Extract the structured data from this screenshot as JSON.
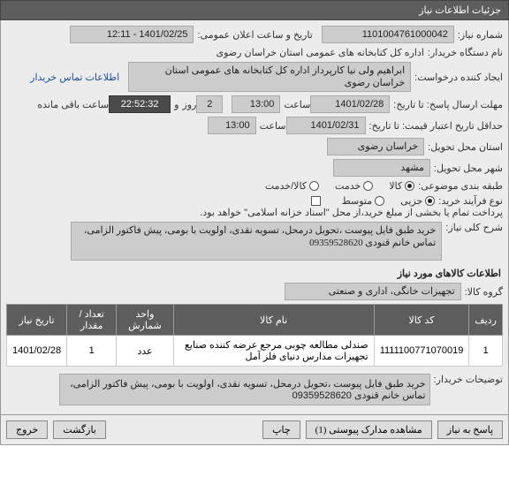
{
  "panel_title": "جزئیات اطلاعات نیاز",
  "labels": {
    "need_no": "شماره نیاز:",
    "announce_datetime": "تاریخ و ساعت اعلان عمومی:",
    "buyer_org": "نام دستگاه خریدار:",
    "request_creator": "ایجاد کننده درخواست:",
    "contact_link": "اطلاعات تماس خریدار",
    "reply_deadline": "مهلت ارسال پاسخ: تا تاریخ:",
    "time": "ساعت",
    "and": "و",
    "day": "روز",
    "remaining": "ساعت باقی مانده",
    "credit_deadline": "حداقل تاریخ اعتبار قیمت: تا تاریخ:",
    "delivery_province": "استان محل تحویل:",
    "delivery_city": "شهر محل تحویل:",
    "commodity_class": "طبقه بندی موضوعی:",
    "purchase_process": "نوع فرآیند خرید:",
    "payment_note": "پرداخت تمام یا بخشی از مبلغ خرید،از محل \"اسناد خزانه اسلامی\" خواهد بود.",
    "need_desc": "شرح کلی نیاز:",
    "items_section": "اطلاعات کالاهای مورد نیاز",
    "commodity_group": "گروه کالا:",
    "buyer_notes": "توضیحات خریدار:"
  },
  "values": {
    "need_no": "1101004761000042",
    "announce_datetime": "1401/02/25 - 12:11",
    "buyer_org": "اداره کل کتابخانه های عمومی استان خراسان رضوی",
    "request_creator": "ابراهیم ولی نیا کارپرداز اداره کل کتابخانه های عمومی استان خراسان رضوی",
    "reply_date": "1401/02/28",
    "reply_time": "13:00",
    "remain_days": "2",
    "remain_time": "22:52:32",
    "credit_date": "1401/02/31",
    "credit_time": "13:00",
    "province": "خراسان رضوی",
    "city": "مشهد",
    "need_desc": "خرید طبق فایل پیوست ،تحویل درمحل، تسویه نقدی، اولویت با بومی، پیش فاکتور الزامی، تماس خانم قنودی 09359528620",
    "commodity_group": "تجهیزات خانگی، اداری و صنعتی",
    "buyer_notes": "خرید طبق فایل پیوست ،تحویل درمحل، تسویه نقدی، اولویت با بومی، پیش فاکتور الزامی، تماس خانم قنودی 09359528620"
  },
  "commodity_class_options": [
    {
      "label": "کالا",
      "selected": true
    },
    {
      "label": "خدمت",
      "selected": false
    },
    {
      "label": "کالا/خدمت",
      "selected": false
    }
  ],
  "purchase_process_options": [
    {
      "label": "جزیی",
      "selected": true
    },
    {
      "label": "متوسط",
      "selected": false
    }
  ],
  "payment_checked": false,
  "table": {
    "columns": [
      "ردیف",
      "کد کالا",
      "نام کالا",
      "واحد شمارش",
      "تعداد / مقدار",
      "تاریخ نیاز"
    ],
    "rows": [
      [
        "1",
        "1111100771070019",
        "صندلی مطالعه چوبی مرجع عرضه کننده صنایع تجهیزات مدارس دنیای فلز آمل",
        "عدد",
        "1",
        "1401/02/28"
      ]
    ]
  },
  "footer": {
    "reply": "پاسخ به نیاز",
    "attachments": "مشاهده مدارک پیوستی (1)",
    "print": "چاپ",
    "back": "بازگشت",
    "exit": "خروج"
  }
}
